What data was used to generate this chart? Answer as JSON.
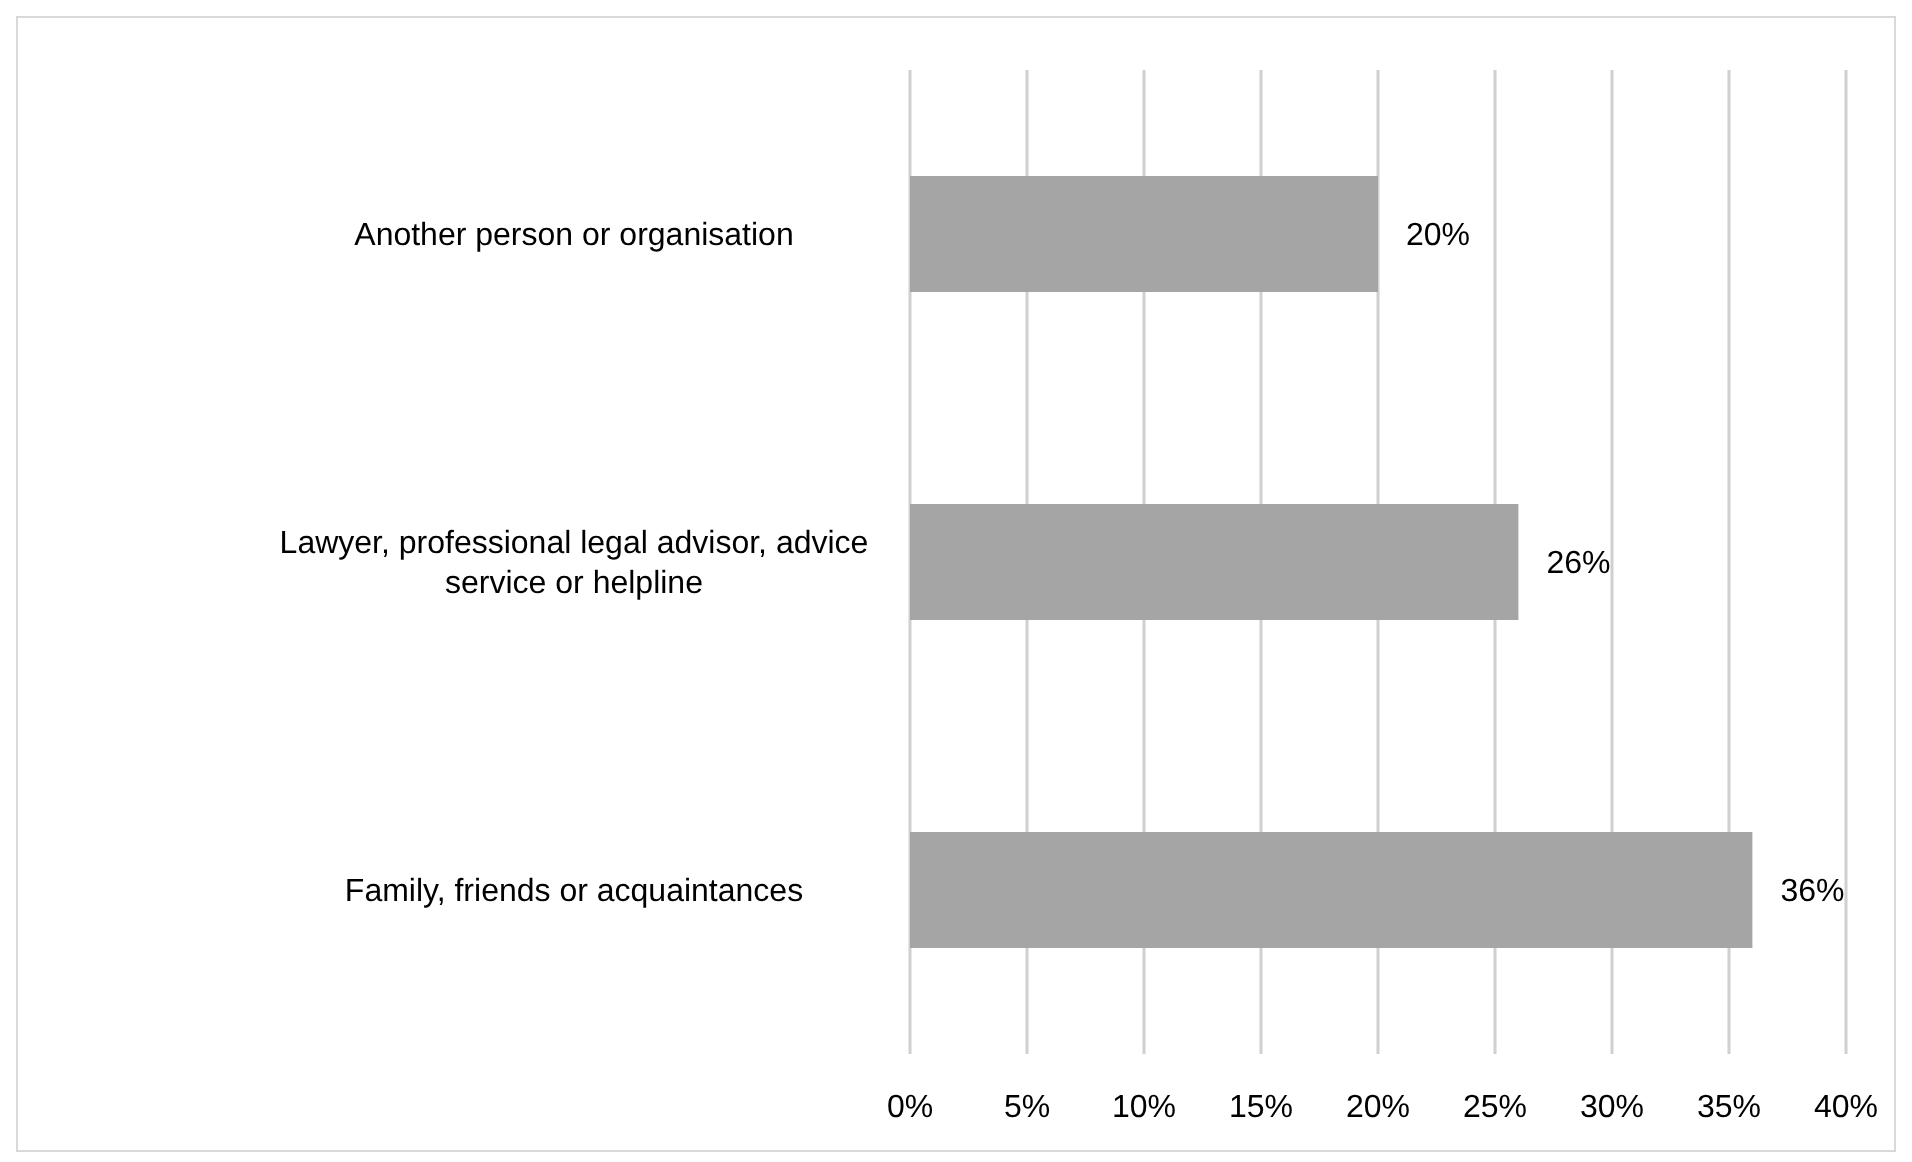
{
  "chart_data": {
    "type": "bar",
    "orientation": "horizontal",
    "categories": [
      "Another person or organisation",
      "Lawyer, professional legal advisor, advice service or helpline",
      "Family, friends or acquaintances"
    ],
    "values": [
      20,
      26,
      36
    ],
    "color": "#a5a5a5",
    "value_labels": [
      "20%",
      "26%",
      "36%"
    ],
    "xlim": [
      0,
      40
    ],
    "xticks": [
      {
        "value": 0,
        "label": "0%"
      },
      {
        "value": 5,
        "label": "5%"
      },
      {
        "value": 10,
        "label": "10%"
      },
      {
        "value": 15,
        "label": "15%"
      },
      {
        "value": 20,
        "label": "20%"
      },
      {
        "value": 25,
        "label": "25%"
      },
      {
        "value": 30,
        "label": "30%"
      },
      {
        "value": 35,
        "label": "35%"
      },
      {
        "value": 40,
        "label": "40%"
      }
    ],
    "grid": "x",
    "legend": false
  }
}
